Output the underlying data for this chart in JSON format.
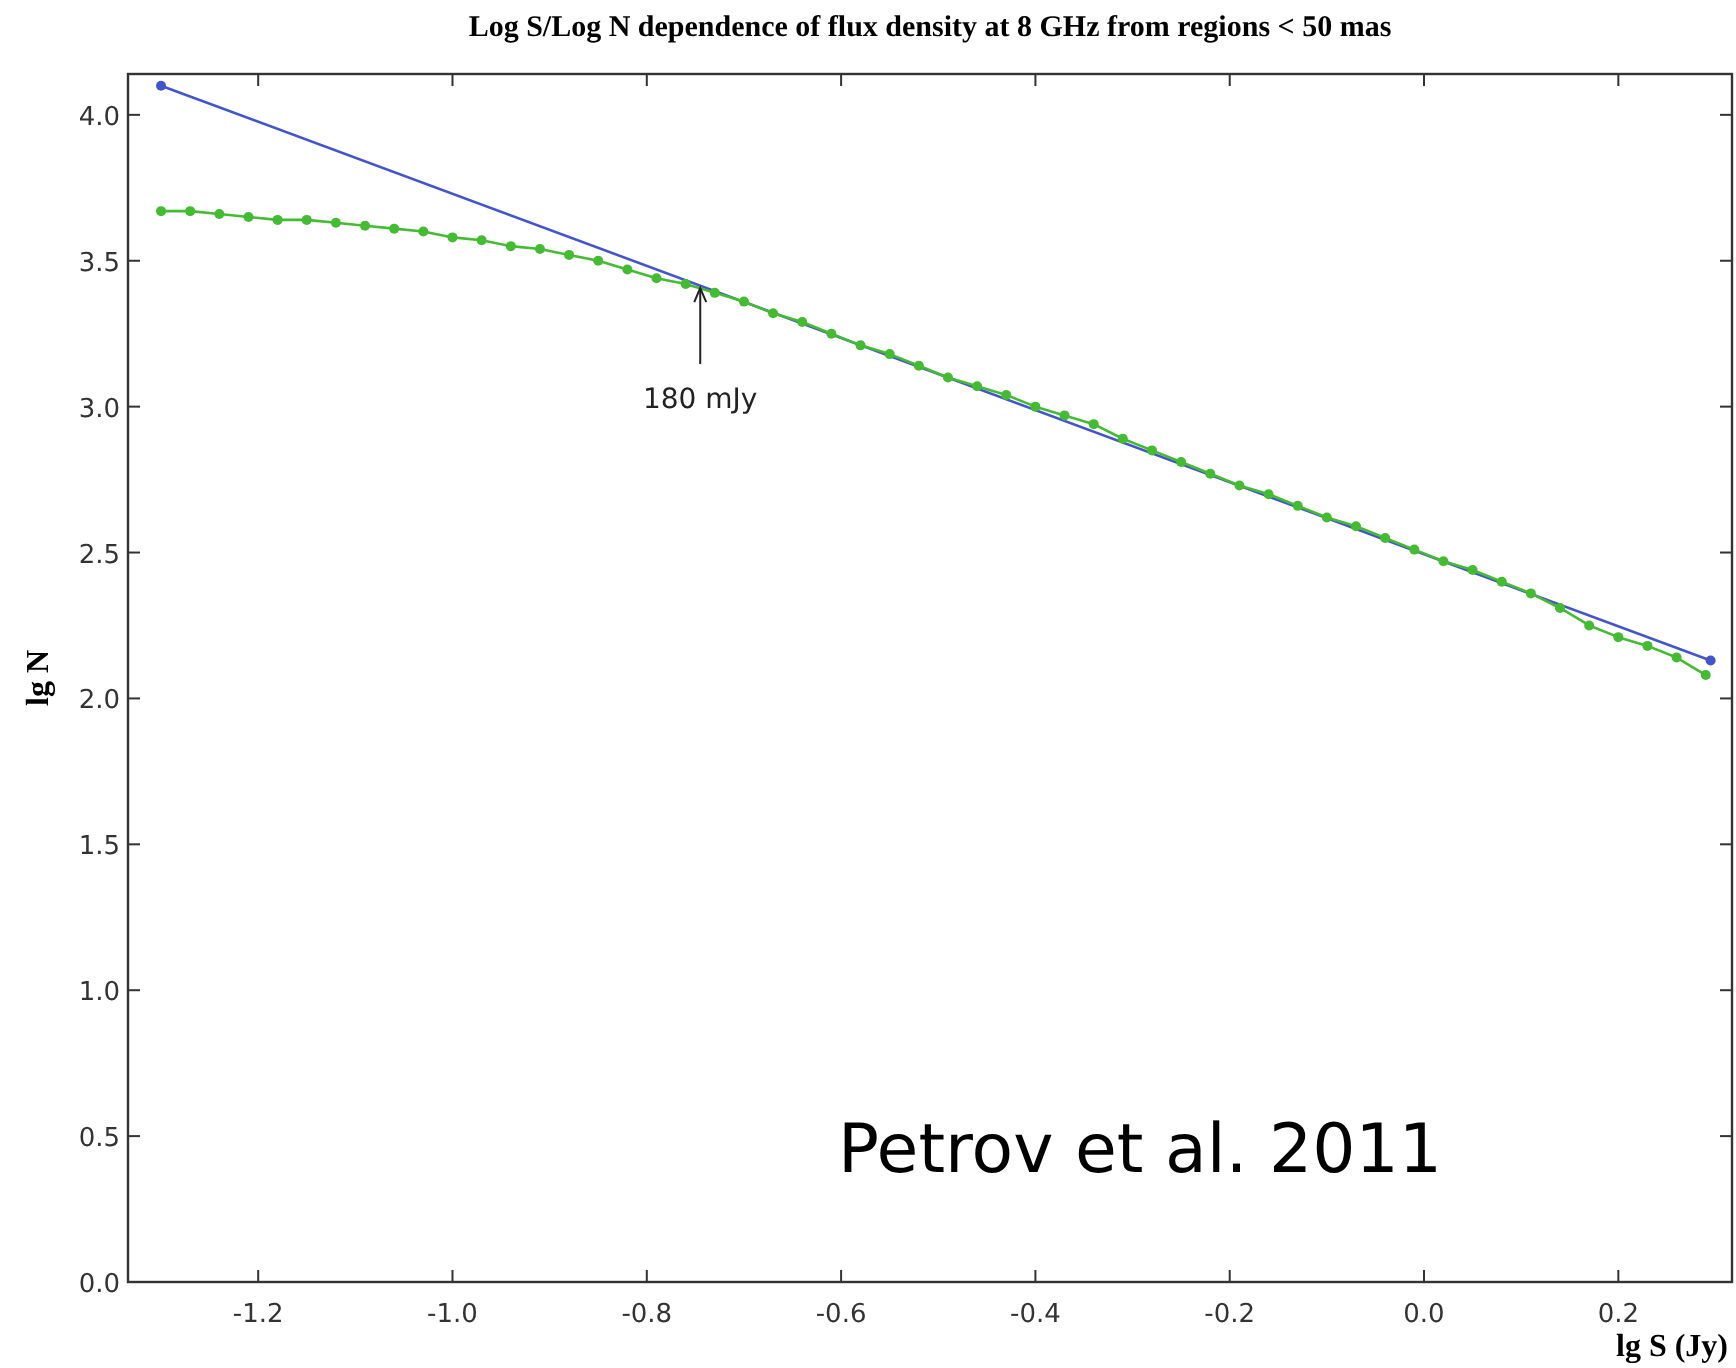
{
  "chart_data": {
    "type": "line",
    "title": "Log S/Log N dependence of flux density at 8 GHz from regions < 50 mas",
    "xlabel": "lg S (Jy)",
    "ylabel": "lg N",
    "xlim": [
      -1.334,
      0.317
    ],
    "ylim": [
      0,
      4.14
    ],
    "xticks": [
      -1.2,
      {
        "value": -1,
        "label": "-1.0"
      },
      -0.8,
      -0.6,
      -0.4,
      -0.2,
      {
        "value": 0,
        "label": "0.0"
      },
      0.2
    ],
    "yticks": [
      {
        "value": 0,
        "label": "0.0"
      },
      0.5,
      {
        "value": 1,
        "label": "1.0"
      },
      1.5,
      {
        "value": 2,
        "label": "2.0"
      },
      2.5,
      {
        "value": 3,
        "label": "3.0"
      },
      3.5,
      {
        "value": 4,
        "label": "4.0"
      }
    ],
    "grid": false,
    "marker": "circle",
    "line_style": "solid",
    "series": [
      {
        "color": "#4455cc",
        "x": [
          -1.3,
          0.295
        ],
        "values": [
          4.1,
          2.13
        ]
      },
      {
        "color": "#44bb33",
        "x": [
          -1.3,
          -1.27,
          -1.24,
          -1.21,
          -1.18,
          -1.15,
          -1.12,
          -1.09,
          -1.06,
          -1.03,
          -1.0,
          -0.97,
          -0.94,
          -0.91,
          -0.88,
          -0.85,
          -0.82,
          -0.79,
          -0.76,
          -0.73,
          -0.7,
          -0.67,
          -0.64,
          -0.61,
          -0.58,
          -0.55,
          -0.52,
          -0.49,
          -0.46,
          -0.43,
          -0.4,
          -0.37,
          -0.34,
          -0.31,
          -0.28,
          -0.25,
          -0.22,
          -0.19,
          -0.16,
          -0.13,
          -0.1,
          -0.07,
          -0.04,
          -0.01,
          0.02,
          0.05,
          0.08,
          0.11,
          0.14,
          0.17,
          0.2,
          0.23,
          0.26,
          0.29
        ],
        "values": [
          3.67,
          3.67,
          3.66,
          3.65,
          3.64,
          3.64,
          3.63,
          3.62,
          3.61,
          3.6,
          3.58,
          3.57,
          3.55,
          3.54,
          3.52,
          3.5,
          3.47,
          3.44,
          3.42,
          3.39,
          3.36,
          3.32,
          3.29,
          3.25,
          3.21,
          3.18,
          3.14,
          3.1,
          3.07,
          3.04,
          3.0,
          2.97,
          2.94,
          2.89,
          2.85,
          2.81,
          2.77,
          2.73,
          2.7,
          2.66,
          2.62,
          2.59,
          2.55,
          2.51,
          2.47,
          2.44,
          2.4,
          2.36,
          2.31,
          2.25,
          2.21,
          2.18,
          2.14,
          2.08
        ]
      }
    ],
    "annotations": [
      {
        "text": "180 mJy",
        "x": -0.745,
        "y": 3.42
      },
      "Petrov et al. 2011"
    ]
  }
}
